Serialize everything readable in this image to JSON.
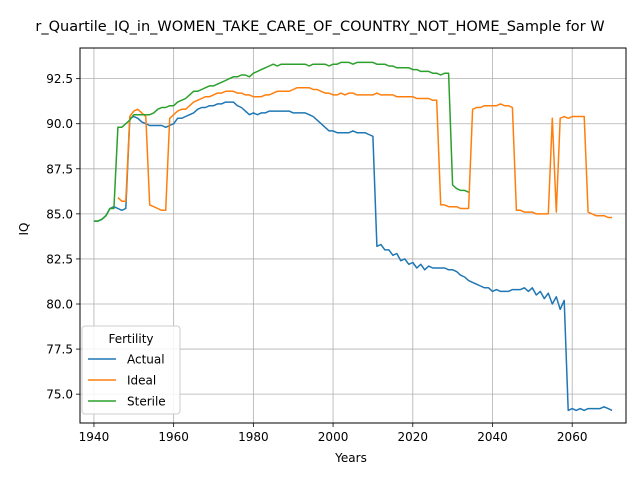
{
  "chart_data": {
    "type": "line",
    "title": "r_Quartile_IQ_in_WOMEN_TAKE_CARE_OF_COUNTRY_NOT_HOME_Sample for W",
    "xlabel": "Years",
    "ylabel": "IQ",
    "xlim": [
      1936.5,
      2073.5
    ],
    "ylim": [
      73.4,
      94.2
    ],
    "xticks": [
      1940,
      1960,
      1980,
      2000,
      2020,
      2040,
      2060
    ],
    "yticks": [
      75.0,
      77.5,
      80.0,
      82.5,
      85.0,
      87.5,
      90.0,
      92.5
    ],
    "ytick_labels": [
      "75.0",
      "77.5",
      "80.0",
      "82.5",
      "85.0",
      "87.5",
      "90.0",
      "92.5"
    ],
    "grid": true,
    "legend": {
      "title": "Fertility",
      "placement": "lower-left"
    },
    "series": [
      {
        "name": "Actual",
        "color": "#1f77b4",
        "x": [
          1940,
          1941,
          1942,
          1943,
          1944,
          1945,
          1946,
          1947,
          1948,
          1949,
          1950,
          1951,
          1952,
          1953,
          1954,
          1955,
          1956,
          1957,
          1958,
          1959,
          1960,
          1961,
          1962,
          1963,
          1964,
          1965,
          1966,
          1967,
          1968,
          1969,
          1970,
          1971,
          1972,
          1973,
          1974,
          1975,
          1976,
          1977,
          1978,
          1979,
          1980,
          1981,
          1982,
          1983,
          1984,
          1985,
          1986,
          1987,
          1988,
          1989,
          1990,
          1991,
          1992,
          1993,
          1994,
          1995,
          1996,
          1997,
          1998,
          1999,
          2000,
          2001,
          2002,
          2003,
          2004,
          2005,
          2006,
          2007,
          2008,
          2009,
          2010,
          2011,
          2012,
          2013,
          2014,
          2015,
          2016,
          2017,
          2018,
          2019,
          2020,
          2021,
          2022,
          2023,
          2024,
          2025,
          2026,
          2027,
          2028,
          2029,
          2030,
          2031,
          2032,
          2033,
          2034,
          2035,
          2036,
          2037,
          2038,
          2039,
          2040,
          2041,
          2042,
          2043,
          2044,
          2045,
          2046,
          2047,
          2048,
          2049,
          2050,
          2051,
          2052,
          2053,
          2054,
          2055,
          2056,
          2057,
          2058,
          2059,
          2060,
          2061,
          2062,
          2063,
          2064,
          2065,
          2066,
          2067,
          2068,
          2069,
          2070
        ],
        "y": [
          84.6,
          84.6,
          84.7,
          84.9,
          85.3,
          85.4,
          85.3,
          85.2,
          85.3,
          90.3,
          90.4,
          90.3,
          90.1,
          90.0,
          89.9,
          89.9,
          89.9,
          89.9,
          89.8,
          89.9,
          90.0,
          90.3,
          90.3,
          90.4,
          90.5,
          90.6,
          90.8,
          90.9,
          90.9,
          91.0,
          91.0,
          91.1,
          91.1,
          91.2,
          91.2,
          91.2,
          91.0,
          90.9,
          90.7,
          90.5,
          90.6,
          90.5,
          90.6,
          90.6,
          90.7,
          90.7,
          90.7,
          90.7,
          90.7,
          90.7,
          90.6,
          90.6,
          90.6,
          90.6,
          90.5,
          90.4,
          90.2,
          90.0,
          89.8,
          89.6,
          89.6,
          89.5,
          89.5,
          89.5,
          89.5,
          89.6,
          89.5,
          89.5,
          89.5,
          89.4,
          89.3,
          83.2,
          83.3,
          83.0,
          83.0,
          82.7,
          82.8,
          82.4,
          82.5,
          82.2,
          82.3,
          82.0,
          82.2,
          81.9,
          82.1,
          82.0,
          82.0,
          82.0,
          82.0,
          81.9,
          81.9,
          81.8,
          81.6,
          81.5,
          81.3,
          81.2,
          81.1,
          81.0,
          80.9,
          80.9,
          80.7,
          80.8,
          80.7,
          80.7,
          80.7,
          80.8,
          80.8,
          80.8,
          80.9,
          80.7,
          80.9,
          80.5,
          80.7,
          80.3,
          80.6,
          80.0,
          80.4,
          79.7,
          80.2,
          74.1,
          74.2,
          74.1,
          74.2,
          74.1,
          74.2,
          74.2,
          74.2,
          74.2,
          74.3,
          74.2,
          74.1
        ]
      },
      {
        "name": "Ideal",
        "color": "#ff7f0e",
        "x": [
          1946,
          1947,
          1948,
          1949,
          1950,
          1951,
          1952,
          1953,
          1954,
          1955,
          1956,
          1957,
          1958,
          1959,
          1960,
          1961,
          1962,
          1963,
          1964,
          1965,
          1966,
          1967,
          1968,
          1969,
          1970,
          1971,
          1972,
          1973,
          1974,
          1975,
          1976,
          1977,
          1978,
          1979,
          1980,
          1981,
          1982,
          1983,
          1984,
          1985,
          1986,
          1987,
          1988,
          1989,
          1990,
          1991,
          1992,
          1993,
          1994,
          1995,
          1996,
          1997,
          1998,
          1999,
          2000,
          2001,
          2002,
          2003,
          2004,
          2005,
          2006,
          2007,
          2008,
          2009,
          2010,
          2011,
          2012,
          2013,
          2014,
          2015,
          2016,
          2017,
          2018,
          2019,
          2020,
          2021,
          2022,
          2023,
          2024,
          2025,
          2026,
          2027,
          2028,
          2029,
          2030,
          2031,
          2032,
          2033,
          2034,
          2035,
          2036,
          2037,
          2038,
          2039,
          2040,
          2041,
          2042,
          2043,
          2044,
          2045,
          2046,
          2047,
          2048,
          2049,
          2050,
          2051,
          2052,
          2053,
          2054,
          2055,
          2056,
          2057,
          2058,
          2059,
          2060,
          2061,
          2062,
          2063,
          2064,
          2065,
          2066,
          2067,
          2068,
          2069,
          2070
        ],
        "y": [
          85.9,
          85.7,
          85.7,
          90.4,
          90.7,
          90.8,
          90.6,
          90.4,
          85.5,
          85.4,
          85.3,
          85.2,
          85.2,
          90.3,
          90.5,
          90.7,
          90.8,
          90.8,
          91.0,
          91.2,
          91.3,
          91.4,
          91.5,
          91.5,
          91.6,
          91.7,
          91.7,
          91.8,
          91.8,
          91.8,
          91.7,
          91.7,
          91.6,
          91.6,
          91.5,
          91.5,
          91.5,
          91.6,
          91.6,
          91.7,
          91.8,
          91.8,
          91.8,
          91.8,
          91.9,
          92.0,
          92.0,
          92.0,
          92.0,
          91.9,
          91.9,
          91.8,
          91.7,
          91.7,
          91.6,
          91.6,
          91.7,
          91.6,
          91.7,
          91.7,
          91.6,
          91.6,
          91.6,
          91.6,
          91.6,
          91.7,
          91.6,
          91.6,
          91.6,
          91.6,
          91.5,
          91.5,
          91.5,
          91.5,
          91.5,
          91.4,
          91.4,
          91.4,
          91.4,
          91.3,
          91.3,
          85.5,
          85.5,
          85.4,
          85.4,
          85.4,
          85.3,
          85.3,
          85.3,
          90.8,
          90.9,
          90.9,
          91.0,
          91.0,
          91.0,
          91.0,
          91.1,
          91.0,
          91.0,
          90.9,
          85.2,
          85.2,
          85.1,
          85.1,
          85.1,
          85.0,
          85.0,
          85.0,
          85.0,
          90.3,
          85.1,
          90.3,
          90.4,
          90.3,
          90.4,
          90.4,
          90.4,
          90.4,
          85.1,
          85.0,
          84.9,
          84.9,
          84.9,
          84.8,
          84.8
        ]
      },
      {
        "name": "Sterile",
        "color": "#2ca02c",
        "x": [
          1940,
          1941,
          1942,
          1943,
          1944,
          1945,
          1946,
          1947,
          1948,
          1949,
          1950,
          1951,
          1952,
          1953,
          1954,
          1955,
          1956,
          1957,
          1958,
          1959,
          1960,
          1961,
          1962,
          1963,
          1964,
          1965,
          1966,
          1967,
          1968,
          1969,
          1970,
          1971,
          1972,
          1973,
          1974,
          1975,
          1976,
          1977,
          1978,
          1979,
          1980,
          1981,
          1982,
          1983,
          1984,
          1985,
          1986,
          1987,
          1988,
          1989,
          1990,
          1991,
          1992,
          1993,
          1994,
          1995,
          1996,
          1997,
          1998,
          1999,
          2000,
          2001,
          2002,
          2003,
          2004,
          2005,
          2006,
          2007,
          2008,
          2009,
          2010,
          2011,
          2012,
          2013,
          2014,
          2015,
          2016,
          2017,
          2018,
          2019,
          2020,
          2021,
          2022,
          2023,
          2024,
          2025,
          2026,
          2027,
          2028,
          2029,
          2030,
          2031,
          2032,
          2033,
          2034
        ],
        "y": [
          84.6,
          84.6,
          84.7,
          84.9,
          85.3,
          85.3,
          89.8,
          89.8,
          90.0,
          90.2,
          90.5,
          90.5,
          90.5,
          90.5,
          90.5,
          90.6,
          90.8,
          90.9,
          90.9,
          91.0,
          91.0,
          91.2,
          91.3,
          91.4,
          91.6,
          91.8,
          91.8,
          91.9,
          92.0,
          92.1,
          92.1,
          92.2,
          92.3,
          92.4,
          92.5,
          92.6,
          92.6,
          92.7,
          92.7,
          92.6,
          92.8,
          92.9,
          93.0,
          93.1,
          93.2,
          93.3,
          93.2,
          93.3,
          93.3,
          93.3,
          93.3,
          93.3,
          93.3,
          93.3,
          93.2,
          93.3,
          93.3,
          93.3,
          93.3,
          93.2,
          93.3,
          93.3,
          93.4,
          93.4,
          93.4,
          93.3,
          93.4,
          93.4,
          93.4,
          93.4,
          93.4,
          93.3,
          93.3,
          93.3,
          93.2,
          93.2,
          93.1,
          93.1,
          93.1,
          93.1,
          93.0,
          93.0,
          92.9,
          92.9,
          92.9,
          92.8,
          92.8,
          92.7,
          92.8,
          92.8,
          86.6,
          86.4,
          86.3,
          86.3,
          86.2
        ]
      }
    ]
  }
}
